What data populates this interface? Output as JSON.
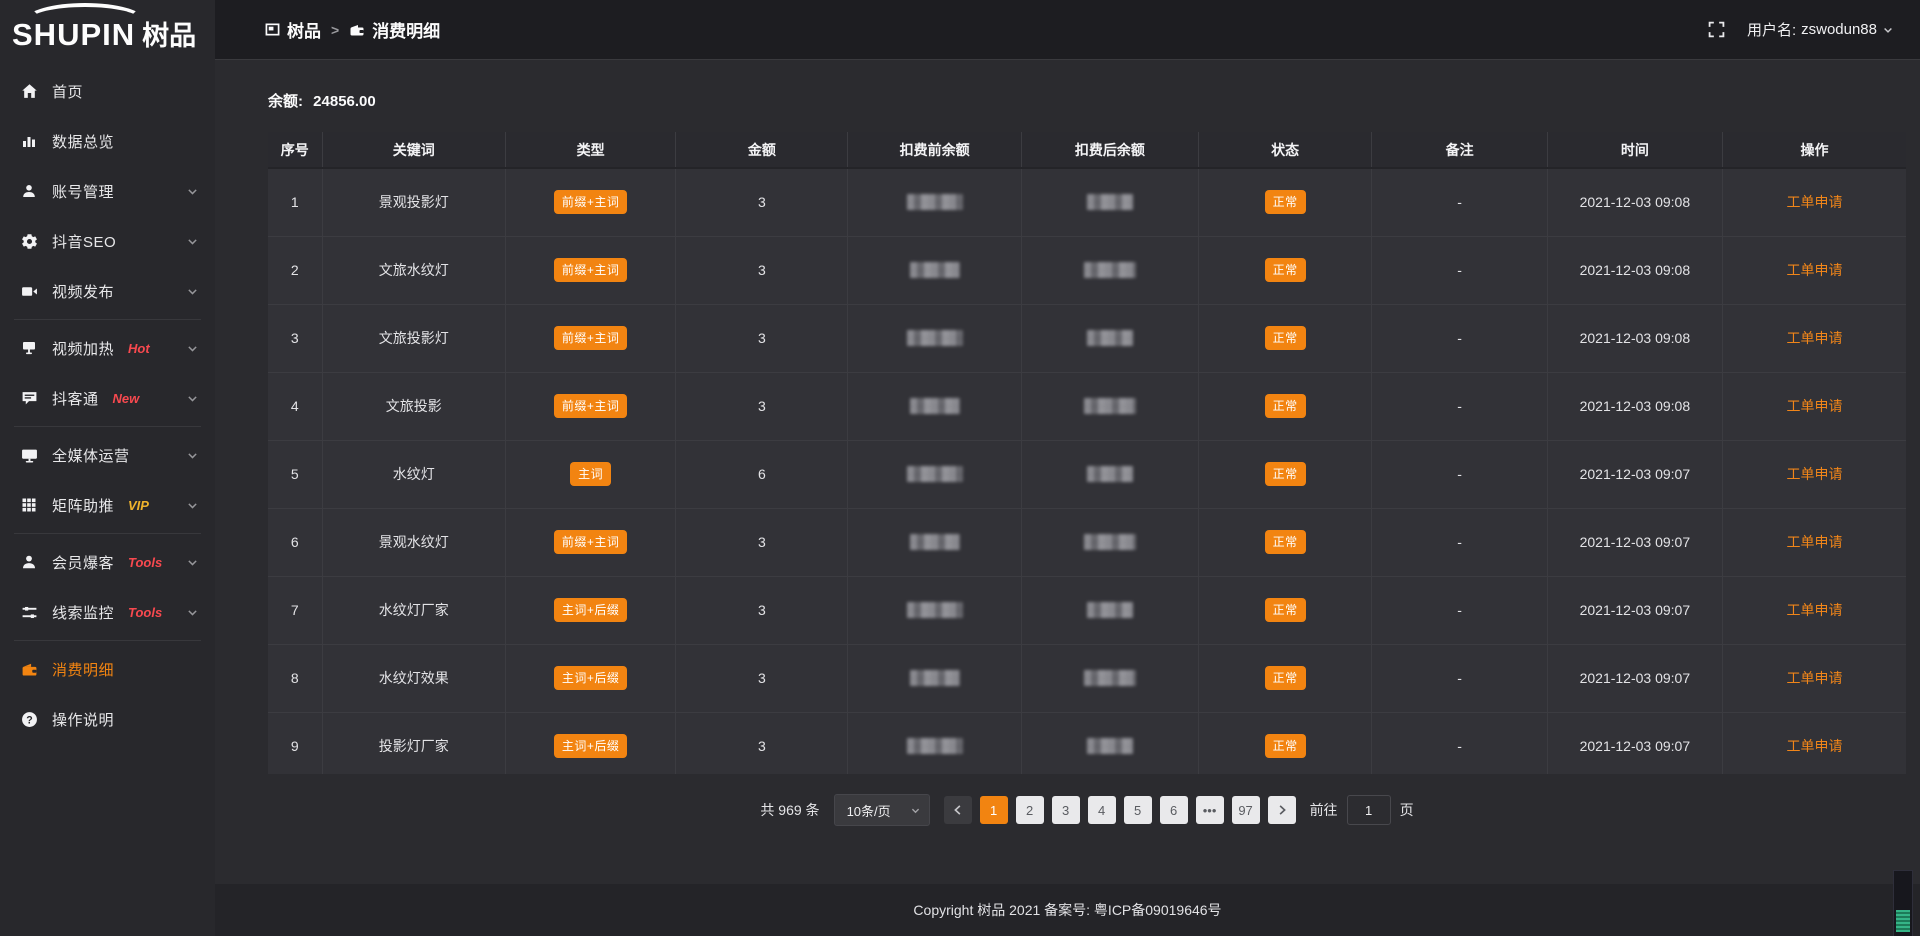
{
  "app": {
    "logo_en": "SHUPIN",
    "logo_cn": "树品"
  },
  "header": {
    "breadcrumb": {
      "first": "树品",
      "separator": ">",
      "second": "消费明细"
    },
    "username_label": "用户名:",
    "username": "zswodun88"
  },
  "sidebar": {
    "items": [
      {
        "slug": "home",
        "label": "首页",
        "icon": "home"
      },
      {
        "slug": "data-overview",
        "label": "数据总览",
        "icon": "chart"
      },
      {
        "slug": "account-manage",
        "label": "账号管理",
        "icon": "user",
        "chevron": true
      },
      {
        "slug": "douyin-seo",
        "label": "抖音SEO",
        "icon": "gear",
        "chevron": true
      },
      {
        "slug": "video-publish",
        "label": "视频发布",
        "icon": "video",
        "chevron": true,
        "divider_after": true
      },
      {
        "slug": "video-heat",
        "label": "视频加热",
        "icon": "board",
        "tag": "Hot",
        "tag_color": "red",
        "chevron": true
      },
      {
        "slug": "douketong",
        "label": "抖客通",
        "icon": "chat",
        "tag": "New",
        "tag_color": "red",
        "chevron": true,
        "divider_after": true
      },
      {
        "slug": "media-operation",
        "label": "全媒体运营",
        "icon": "monitor",
        "chevron": true
      },
      {
        "slug": "matrix-boost",
        "label": "矩阵助推",
        "icon": "grid",
        "tag": "VIP",
        "tag_color": "yellow",
        "chevron": true,
        "divider_after": true
      },
      {
        "slug": "member-baoke",
        "label": "会员爆客",
        "icon": "member",
        "tag": "Tools",
        "tag_color": "red",
        "chevron": true
      },
      {
        "slug": "clue-monitor",
        "label": "线索监控",
        "icon": "sliders",
        "tag": "Tools",
        "tag_color": "red",
        "chevron": true,
        "divider_after": true
      },
      {
        "slug": "consumption-detail",
        "label": "消费明细",
        "icon": "wallet",
        "active": true
      },
      {
        "slug": "operation-guide",
        "label": "操作说明",
        "icon": "question"
      }
    ]
  },
  "main": {
    "balance_label": "余额:",
    "balance_value": "24856.00",
    "table": {
      "columns": [
        "序号",
        "关键词",
        "类型",
        "金额",
        "扣费前余额",
        "扣费后余额",
        "状态",
        "备注",
        "时间",
        "操作"
      ],
      "rows": [
        {
          "index": "1",
          "keyword": "景观投影灯",
          "type": "前缀+主词",
          "amount": "3",
          "status": "正常",
          "remark": "-",
          "time": "2021-12-03 09:08",
          "action": "工单申请"
        },
        {
          "index": "2",
          "keyword": "文旅水纹灯",
          "type": "前缀+主词",
          "amount": "3",
          "status": "正常",
          "remark": "-",
          "time": "2021-12-03 09:08",
          "action": "工单申请"
        },
        {
          "index": "3",
          "keyword": "文旅投影灯",
          "type": "前缀+主词",
          "amount": "3",
          "status": "正常",
          "remark": "-",
          "time": "2021-12-03 09:08",
          "action": "工单申请"
        },
        {
          "index": "4",
          "keyword": "文旅投影",
          "type": "前缀+主词",
          "amount": "3",
          "status": "正常",
          "remark": "-",
          "time": "2021-12-03 09:08",
          "action": "工单申请"
        },
        {
          "index": "5",
          "keyword": "水纹灯",
          "type": "主词",
          "amount": "6",
          "status": "正常",
          "remark": "-",
          "time": "2021-12-03 09:07",
          "action": "工单申请"
        },
        {
          "index": "6",
          "keyword": "景观水纹灯",
          "type": "前缀+主词",
          "amount": "3",
          "status": "正常",
          "remark": "-",
          "time": "2021-12-03 09:07",
          "action": "工单申请"
        },
        {
          "index": "7",
          "keyword": "水纹灯厂家",
          "type": "主词+后缀",
          "amount": "3",
          "status": "正常",
          "remark": "-",
          "time": "2021-12-03 09:07",
          "action": "工单申请"
        },
        {
          "index": "8",
          "keyword": "水纹灯效果",
          "type": "主词+后缀",
          "amount": "3",
          "status": "正常",
          "remark": "-",
          "time": "2021-12-03 09:07",
          "action": "工单申请"
        },
        {
          "index": "9",
          "keyword": "投影灯厂家",
          "type": "主词+后缀",
          "amount": "3",
          "status": "正常",
          "remark": "-",
          "time": "2021-12-03 09:07",
          "action": "工单申请"
        }
      ]
    },
    "pagination": {
      "total": "共 969 条",
      "page_size": "10条/页",
      "pages": [
        "1",
        "2",
        "3",
        "4",
        "5",
        "6",
        "•••",
        "97"
      ],
      "active_page": "1",
      "goto_label": "前往",
      "goto_value": "1",
      "goto_suffix": "页"
    }
  },
  "footer": {
    "copyright": "Copyright 树品 2021 备案号: 粤ICP备09019646号"
  },
  "colors": {
    "accent": "#f28411",
    "tag_red": "#f8494f",
    "tag_yellow": "#f0b42c",
    "link": "#f08519"
  }
}
